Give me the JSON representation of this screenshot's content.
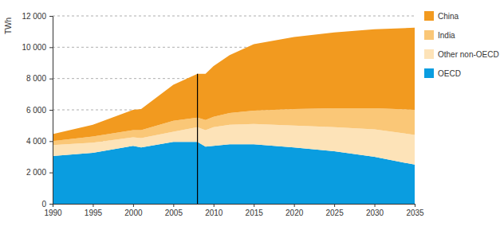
{
  "chart_data": {
    "type": "area",
    "stacked": true,
    "y_label": "TWh",
    "x": [
      1990,
      1995,
      2000,
      2001,
      2005,
      2008,
      2009,
      2010,
      2012,
      2015,
      2020,
      2025,
      2030,
      2035
    ],
    "series": [
      {
        "name": "OECD",
        "color": "#0a9de0",
        "values": [
          3050,
          3250,
          3700,
          3600,
          3950,
          3950,
          3650,
          3700,
          3800,
          3800,
          3600,
          3350,
          3000,
          2500
        ]
      },
      {
        "name": "Other non-OECD",
        "color": "#fde3b8",
        "values": [
          700,
          650,
          550,
          600,
          650,
          950,
          1050,
          1200,
          1250,
          1300,
          1400,
          1550,
          1750,
          1900
        ]
      },
      {
        "name": "India",
        "color": "#fac777",
        "values": [
          250,
          400,
          450,
          500,
          700,
          600,
          650,
          650,
          750,
          850,
          1050,
          1200,
          1350,
          1600
        ]
      },
      {
        "name": "China",
        "color": "#f29a1f",
        "values": [
          450,
          750,
          1300,
          1350,
          2300,
          2800,
          2950,
          3250,
          3700,
          4250,
          4600,
          4850,
          5050,
          5250
        ]
      }
    ],
    "vertical_line": 2008,
    "xlim": [
      1990,
      2035
    ],
    "xticks": [
      1990,
      1995,
      2000,
      2005,
      2010,
      2015,
      2020,
      2025,
      2030,
      2035
    ],
    "ylim": [
      0,
      12000
    ],
    "yticks": [
      0,
      {
        "value": 2000,
        "label": "2 000"
      },
      {
        "value": 4000,
        "label": "4 000"
      },
      {
        "value": 6000,
        "label": "6 000"
      },
      {
        "value": 8000,
        "label": "8 000"
      },
      {
        "value": 10000,
        "label": "10 000"
      },
      {
        "value": 12000,
        "label": "12 000"
      }
    ],
    "grid": true,
    "legend": "right"
  }
}
